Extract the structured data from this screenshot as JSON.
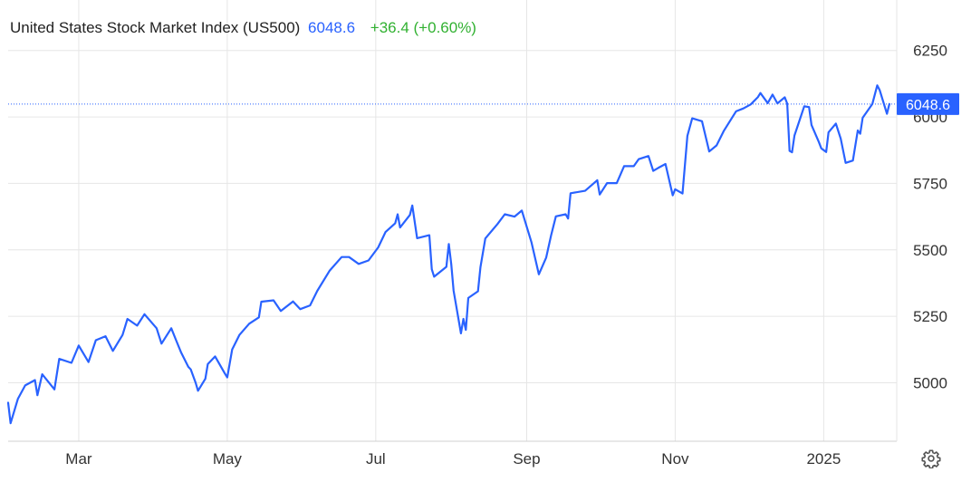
{
  "header": {
    "title": "United States Stock Market Index (US500)",
    "last": "6048.6",
    "change": "+36.4 (+0.60%)"
  },
  "colors": {
    "line": "#2962ff",
    "positive": "#31b131",
    "grid": "#e6e6e6",
    "badge_bg": "#2962ff",
    "badge_text": "#ffffff"
  },
  "icons": {
    "settings": "gear-icon"
  },
  "chart_data": {
    "type": "line",
    "title": "United States Stock Market Index (US500)",
    "xlabel": "",
    "ylabel": "",
    "x_range": [
      "2024-02-01",
      "2025-01-31"
    ],
    "ylim": [
      4780,
      6440
    ],
    "y_ticks": [
      5000,
      5250,
      5500,
      5750,
      6000,
      6250
    ],
    "x_ticks": [
      {
        "date": "2024-03-01",
        "label": "Mar"
      },
      {
        "date": "2024-05-01",
        "label": "May"
      },
      {
        "date": "2024-07-01",
        "label": "Jul"
      },
      {
        "date": "2024-09-01",
        "label": "Sep"
      },
      {
        "date": "2024-11-01",
        "label": "Nov"
      },
      {
        "date": "2025-01-01",
        "label": "2025"
      }
    ],
    "last_value": 6048.6,
    "last_label": "6048.6",
    "grid": true,
    "series": [
      {
        "points": [
          [
            "2024-02-01",
            4925
          ],
          [
            "2024-02-02",
            4848
          ],
          [
            "2024-02-05",
            4940
          ],
          [
            "2024-02-08",
            4990
          ],
          [
            "2024-02-12",
            5010
          ],
          [
            "2024-02-13",
            4953
          ],
          [
            "2024-02-15",
            5032
          ],
          [
            "2024-02-20",
            4975
          ],
          [
            "2024-02-22",
            5090
          ],
          [
            "2024-02-27",
            5075
          ],
          [
            "2024-03-01",
            5140
          ],
          [
            "2024-03-05",
            5078
          ],
          [
            "2024-03-08",
            5160
          ],
          [
            "2024-03-12",
            5175
          ],
          [
            "2024-03-15",
            5120
          ],
          [
            "2024-03-19",
            5180
          ],
          [
            "2024-03-21",
            5240
          ],
          [
            "2024-03-25",
            5215
          ],
          [
            "2024-03-28",
            5258
          ],
          [
            "2024-04-02",
            5205
          ],
          [
            "2024-04-04",
            5147
          ],
          [
            "2024-04-08",
            5205
          ],
          [
            "2024-04-10",
            5160
          ],
          [
            "2024-04-12",
            5115
          ],
          [
            "2024-04-15",
            5060
          ],
          [
            "2024-04-16",
            5050
          ],
          [
            "2024-04-18",
            5000
          ],
          [
            "2024-04-19",
            4970
          ],
          [
            "2024-04-22",
            5015
          ],
          [
            "2024-04-23",
            5070
          ],
          [
            "2024-04-26",
            5099
          ],
          [
            "2024-04-30",
            5035
          ],
          [
            "2024-05-01",
            5020
          ],
          [
            "2024-05-03",
            5125
          ],
          [
            "2024-05-06",
            5180
          ],
          [
            "2024-05-10",
            5222
          ],
          [
            "2024-05-14",
            5246
          ],
          [
            "2024-05-15",
            5305
          ],
          [
            "2024-05-20",
            5310
          ],
          [
            "2024-05-23",
            5270
          ],
          [
            "2024-05-28",
            5306
          ],
          [
            "2024-05-31",
            5277
          ],
          [
            "2024-06-04",
            5291
          ],
          [
            "2024-06-07",
            5346
          ],
          [
            "2024-06-12",
            5421
          ],
          [
            "2024-06-17",
            5473
          ],
          [
            "2024-06-20",
            5473
          ],
          [
            "2024-06-24",
            5447
          ],
          [
            "2024-06-28",
            5460
          ],
          [
            "2024-07-02",
            5509
          ],
          [
            "2024-07-05",
            5567
          ],
          [
            "2024-07-09",
            5600
          ],
          [
            "2024-07-10",
            5634
          ],
          [
            "2024-07-11",
            5584
          ],
          [
            "2024-07-15",
            5631
          ],
          [
            "2024-07-16",
            5667
          ],
          [
            "2024-07-18",
            5544
          ],
          [
            "2024-07-23",
            5555
          ],
          [
            "2024-07-24",
            5427
          ],
          [
            "2024-07-25",
            5399
          ],
          [
            "2024-07-30",
            5436
          ],
          [
            "2024-07-31",
            5522
          ],
          [
            "2024-08-01",
            5446
          ],
          [
            "2024-08-02",
            5346
          ],
          [
            "2024-08-05",
            5186
          ],
          [
            "2024-08-06",
            5240
          ],
          [
            "2024-08-07",
            5199
          ],
          [
            "2024-08-08",
            5319
          ],
          [
            "2024-08-12",
            5344
          ],
          [
            "2024-08-13",
            5434
          ],
          [
            "2024-08-15",
            5543
          ],
          [
            "2024-08-20",
            5597
          ],
          [
            "2024-08-23",
            5634
          ],
          [
            "2024-08-27",
            5625
          ],
          [
            "2024-08-30",
            5648
          ],
          [
            "2024-09-03",
            5528
          ],
          [
            "2024-09-06",
            5408
          ],
          [
            "2024-09-09",
            5471
          ],
          [
            "2024-09-11",
            5554
          ],
          [
            "2024-09-13",
            5626
          ],
          [
            "2024-09-17",
            5634
          ],
          [
            "2024-09-18",
            5618
          ],
          [
            "2024-09-19",
            5713
          ],
          [
            "2024-09-25",
            5722
          ],
          [
            "2024-09-30",
            5762
          ],
          [
            "2024-10-01",
            5708
          ],
          [
            "2024-10-04",
            5751
          ],
          [
            "2024-10-08",
            5751
          ],
          [
            "2024-10-11",
            5815
          ],
          [
            "2024-10-15",
            5815
          ],
          [
            "2024-10-17",
            5841
          ],
          [
            "2024-10-21",
            5853
          ],
          [
            "2024-10-23",
            5797
          ],
          [
            "2024-10-25",
            5808
          ],
          [
            "2024-10-28",
            5823
          ],
          [
            "2024-10-31",
            5705
          ],
          [
            "2024-11-01",
            5728
          ],
          [
            "2024-11-04",
            5712
          ],
          [
            "2024-11-06",
            5929
          ],
          [
            "2024-11-08",
            5995
          ],
          [
            "2024-11-12",
            5984
          ],
          [
            "2024-11-15",
            5870
          ],
          [
            "2024-11-18",
            5893
          ],
          [
            "2024-11-21",
            5948
          ],
          [
            "2024-11-26",
            6021
          ],
          [
            "2024-11-29",
            6032
          ],
          [
            "2024-12-02",
            6047
          ],
          [
            "2024-12-05",
            6075
          ],
          [
            "2024-12-06",
            6090
          ],
          [
            "2024-12-09",
            6052
          ],
          [
            "2024-12-11",
            6084
          ],
          [
            "2024-12-13",
            6051
          ],
          [
            "2024-12-16",
            6074
          ],
          [
            "2024-12-17",
            6050
          ],
          [
            "2024-12-18",
            5872
          ],
          [
            "2024-12-19",
            5867
          ],
          [
            "2024-12-20",
            5930
          ],
          [
            "2024-12-24",
            6040
          ],
          [
            "2024-12-26",
            6037
          ],
          [
            "2024-12-27",
            5970
          ],
          [
            "2024-12-30",
            5906
          ],
          [
            "2024-12-31",
            5882
          ],
          [
            "2025-01-02",
            5868
          ],
          [
            "2025-01-03",
            5942
          ],
          [
            "2025-01-06",
            5975
          ],
          [
            "2025-01-08",
            5918
          ],
          [
            "2025-01-10",
            5827
          ],
          [
            "2025-01-13",
            5836
          ],
          [
            "2025-01-15",
            5949
          ],
          [
            "2025-01-16",
            5937
          ],
          [
            "2025-01-17",
            5997
          ],
          [
            "2025-01-21",
            6049
          ],
          [
            "2025-01-23",
            6119
          ],
          [
            "2025-01-24",
            6101
          ],
          [
            "2025-01-27",
            6012
          ],
          [
            "2025-01-28",
            6048.6
          ]
        ]
      }
    ]
  }
}
